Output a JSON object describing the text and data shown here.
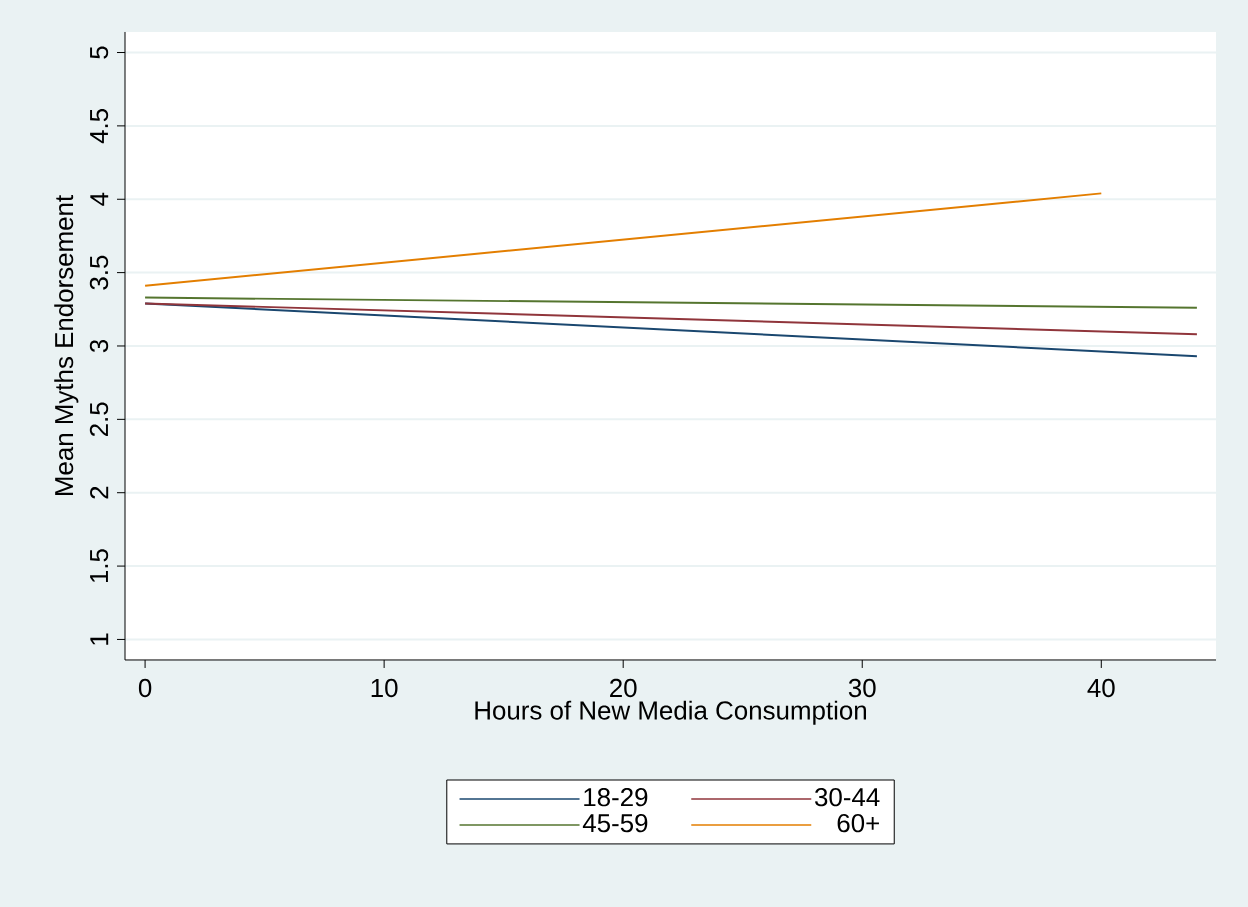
{
  "chart_data": {
    "type": "line",
    "xlabel": "Hours of New Media Consumption",
    "ylabel": "Mean Myths Endorsement",
    "xlim": [
      -0.84,
      44.8
    ],
    "ylim": [
      0.86,
      5.14
    ],
    "xticks": [
      0,
      10,
      20,
      30,
      40
    ],
    "yticks": [
      1,
      1.5,
      2,
      2.5,
      3,
      3.5,
      4,
      4.5,
      5
    ],
    "grid": "y",
    "legend": "bottom",
    "marker": "none",
    "line_style": "solid",
    "series": [
      {
        "name": "18-29",
        "color": "#1a476f",
        "x": [
          0,
          44
        ],
        "values": [
          3.29,
          2.93
        ]
      },
      {
        "name": "30-44",
        "color": "#90353b",
        "x": [
          0,
          44
        ],
        "values": [
          3.29,
          3.08
        ]
      },
      {
        "name": "45-59",
        "color": "#55752f",
        "x": [
          0,
          44
        ],
        "values": [
          3.33,
          3.26
        ]
      },
      {
        "name": "60+",
        "color": "#e37e00",
        "x": [
          0,
          40
        ],
        "values": [
          3.41,
          4.04
        ]
      }
    ]
  }
}
